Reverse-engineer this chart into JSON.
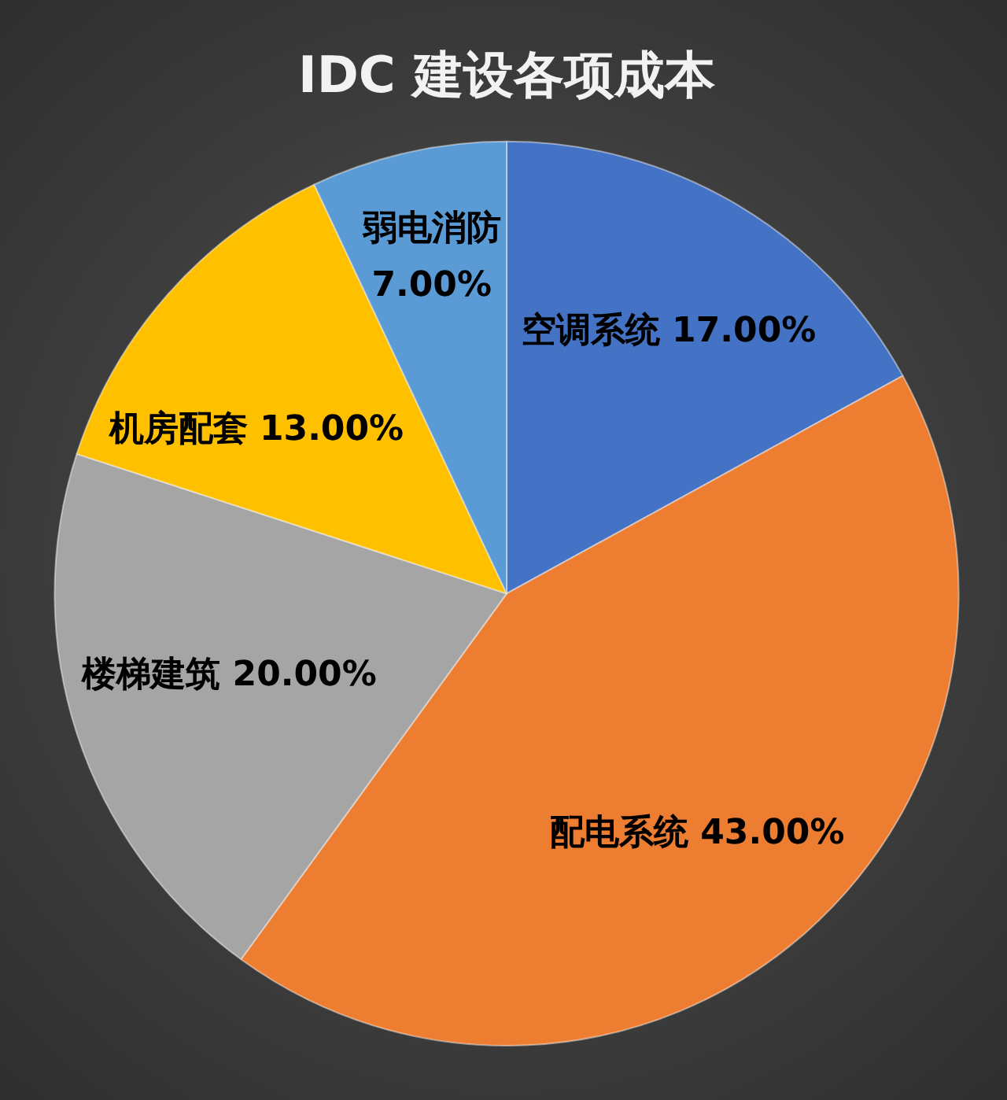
{
  "chart_data": {
    "type": "pie",
    "title": "IDC 建设各项成本",
    "categories": [
      "空调系统",
      "配电系统",
      "楼梯建筑",
      "机房配套",
      "弱电消防"
    ],
    "values": [
      17,
      43,
      20,
      13,
      7
    ],
    "colors": [
      "#4472c4",
      "#ed7d31",
      "#a5a5a5",
      "#ffc000",
      "#5b9bd5"
    ],
    "value_labels": [
      "17.00%",
      "43.00%",
      "20.00%",
      "13.00%",
      "7.00%"
    ]
  }
}
